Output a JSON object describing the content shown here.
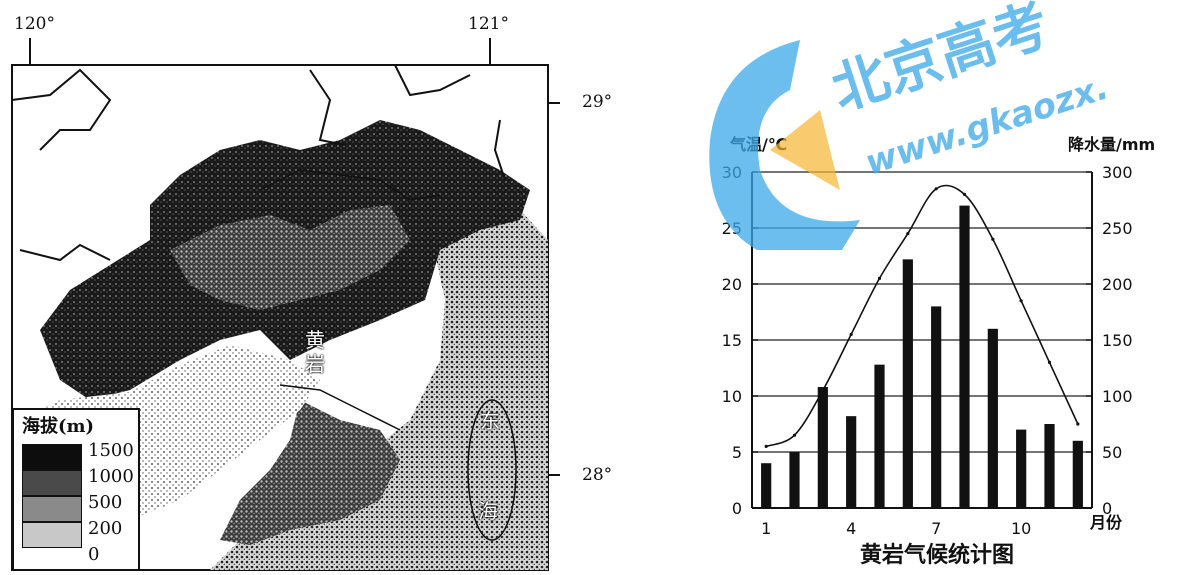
{
  "map": {
    "longitude_labels": [
      "120°",
      "121°"
    ],
    "latitude_labels": [
      "29°",
      "28°"
    ],
    "place_labels": {
      "town": "黄岩",
      "sea": [
        "东",
        "海"
      ]
    },
    "legend": {
      "title": "海拔(m)",
      "ticks": [
        "1500",
        "1000",
        "500",
        "200",
        "0"
      ],
      "colors": [
        "#0d0d0d",
        "#4a4a4a",
        "#8a8a8a",
        "#c8c8c8",
        "#ffffff"
      ]
    }
  },
  "chart_data": {
    "type": "bar",
    "title": "黄岩气候统计图",
    "x_label": "月份",
    "y_left_label": "气温/℃",
    "y_right_label": "降水量/mm",
    "x_ticks": [
      "1",
      "4",
      "7",
      "10"
    ],
    "y_left_ticks": [
      "0",
      "5",
      "10",
      "15",
      "20",
      "25",
      "30"
    ],
    "y_right_ticks": [
      "0",
      "50",
      "100",
      "150",
      "200",
      "250",
      "300"
    ],
    "y_left_range": [
      0,
      30
    ],
    "y_right_range": [
      0,
      300
    ],
    "months": [
      1,
      2,
      3,
      4,
      5,
      6,
      7,
      8,
      9,
      10,
      11,
      12
    ],
    "precipitation_mm": [
      40,
      50,
      108,
      82,
      128,
      222,
      180,
      270,
      160,
      70,
      75,
      60
    ],
    "temperature_c": [
      5.5,
      6.5,
      10.5,
      15.5,
      20.5,
      24.5,
      28.5,
      28.0,
      24.0,
      18.5,
      13.0,
      7.5
    ],
    "grid": "horizontal"
  },
  "watermark": {
    "brand": "北京高考",
    "url": "www.gkaozx."
  }
}
